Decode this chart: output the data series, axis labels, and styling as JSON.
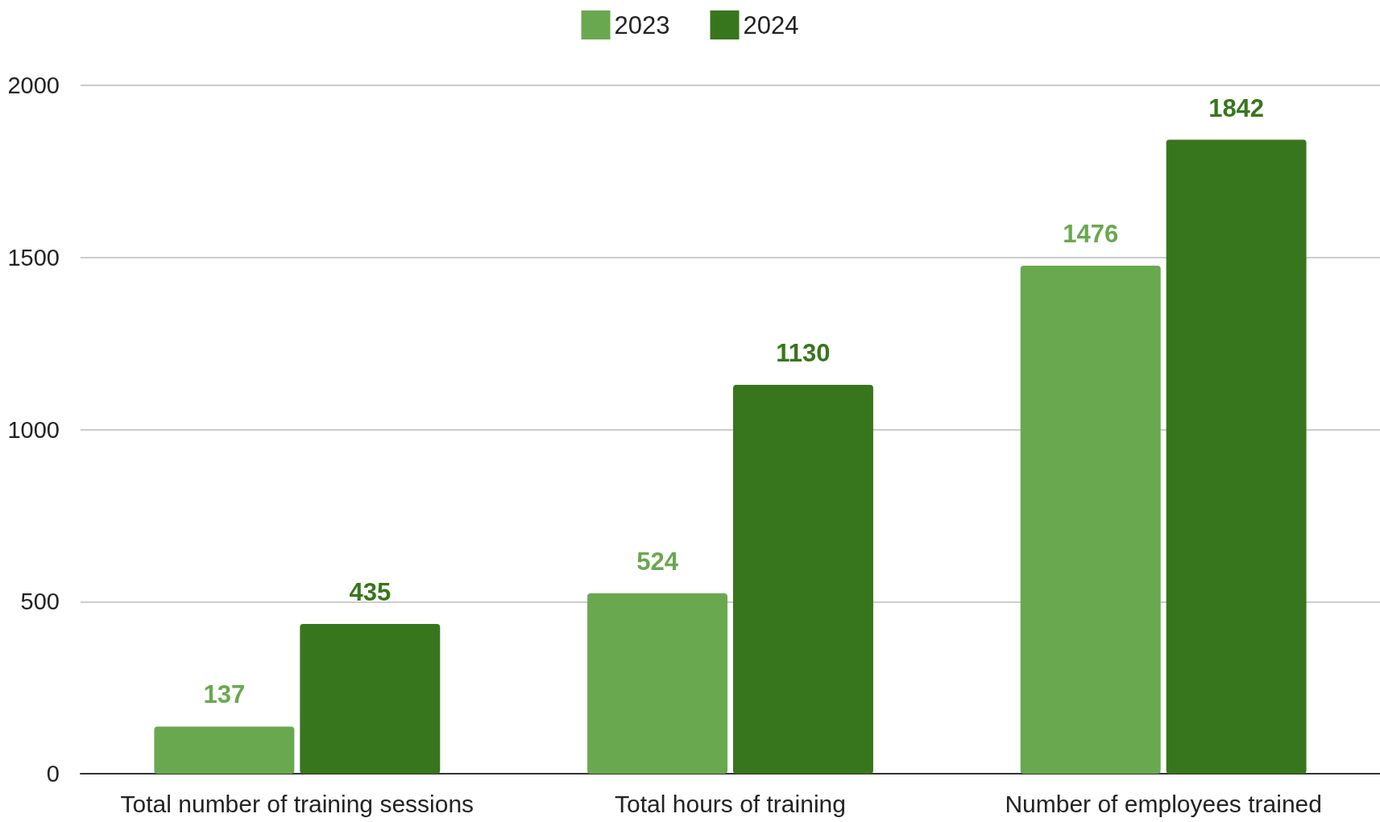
{
  "chart_data": {
    "type": "bar",
    "categories": [
      "Total number of training sessions",
      "Total hours of training",
      "Number of employees trained"
    ],
    "series": [
      {
        "name": "2023",
        "color": "#6aa84f",
        "values": [
          137,
          524,
          1476
        ]
      },
      {
        "name": "2024",
        "color": "#38761d",
        "values": [
          435,
          1130,
          1842
        ]
      }
    ],
    "ylim": [
      0,
      2000
    ],
    "yticks": [
      0,
      500,
      1000,
      1500,
      2000
    ],
    "grid": "y",
    "legend": "top",
    "data_labels": true
  }
}
